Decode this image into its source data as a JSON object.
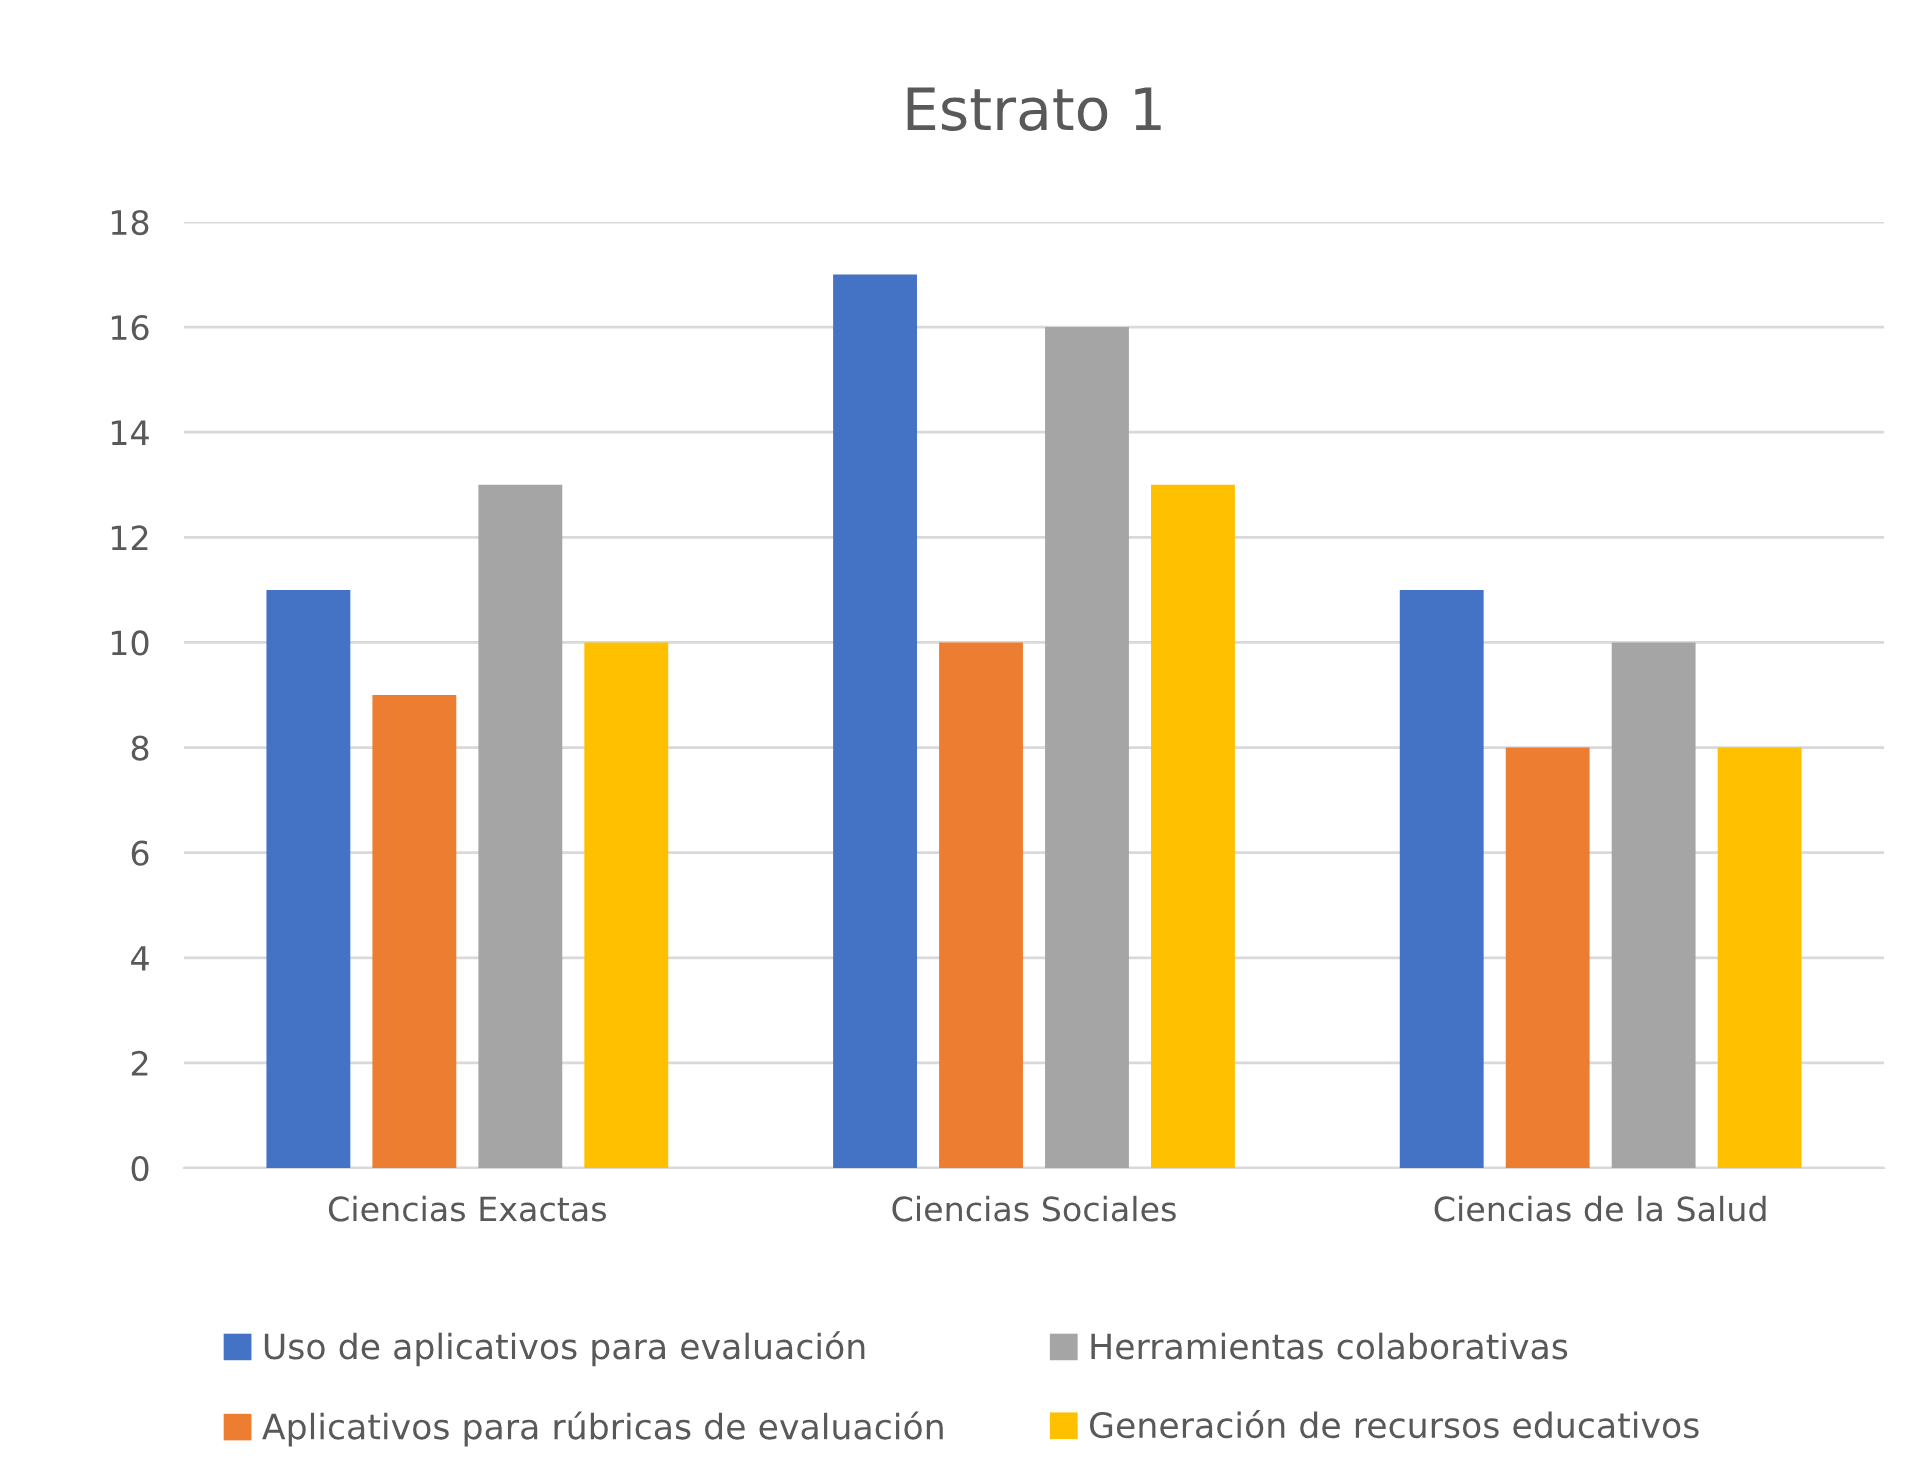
{
  "chart_data": {
    "type": "bar",
    "title": "Estrato 1",
    "categories": [
      "Ciencias Exactas",
      "Ciencias Sociales",
      "Ciencias de la Salud"
    ],
    "series": [
      {
        "name": "Uso de aplicativos para evaluación",
        "color": "#4472c4",
        "values": [
          11,
          17,
          11
        ]
      },
      {
        "name": "Aplicativos para rúbricas de evaluación",
        "color": "#ed7d31",
        "values": [
          9,
          10,
          8
        ]
      },
      {
        "name": "Herramientas colaborativas",
        "color": "#a5a5a5",
        "values": [
          13,
          16,
          10
        ]
      },
      {
        "name": "Generación de recursos educativos",
        "color": "#ffc000",
        "values": [
          10,
          13,
          8
        ]
      }
    ],
    "ylim": [
      0,
      18
    ],
    "yticks": [
      0,
      2,
      4,
      6,
      8,
      10,
      12,
      14,
      16,
      18
    ],
    "grid": "y",
    "legend": "bottom"
  }
}
